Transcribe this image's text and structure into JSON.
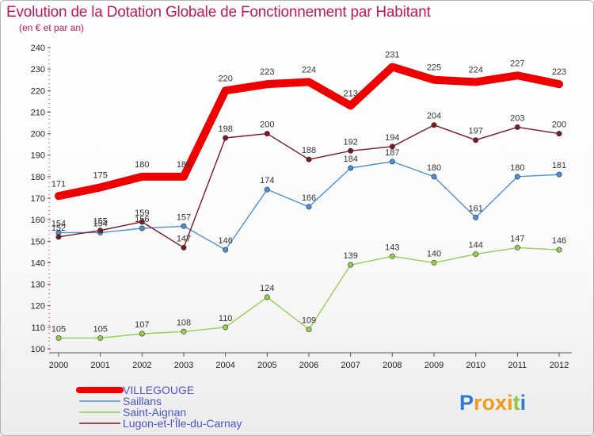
{
  "chart_data": {
    "type": "line",
    "title": "Evolution de la Dotation Globale de Fonctionnement par Habitant",
    "subtitle": "(en € et par an)",
    "xlabel": "",
    "ylabel": "",
    "x": [
      "2000",
      "2001",
      "2002",
      "2003",
      "2004",
      "2005",
      "2006",
      "2007",
      "2008",
      "2009",
      "2010",
      "2011",
      "2012"
    ],
    "ylim": [
      100,
      240
    ],
    "yticks": [
      100,
      110,
      120,
      130,
      140,
      150,
      160,
      170,
      180,
      190,
      200,
      210,
      220,
      230,
      240
    ],
    "grid": false,
    "legend_position": "bottom-left",
    "series": [
      {
        "name": "VILLEGOUGE",
        "color": "#ee0000",
        "values": [
          171,
          175,
          180,
          180,
          220,
          223,
          224,
          213,
          231,
          225,
          224,
          227,
          223
        ]
      },
      {
        "name": "Saillans",
        "color": "#4a90d9",
        "values": [
          154,
          154,
          156,
          157,
          146,
          174,
          166,
          184,
          187,
          180,
          161,
          180,
          181
        ]
      },
      {
        "name": "Saint-Aignan",
        "color": "#92d050",
        "values": [
          105,
          105,
          107,
          108,
          110,
          124,
          109,
          139,
          143,
          140,
          144,
          147,
          146
        ]
      },
      {
        "name": "Lugon-et-l'Île-du-Carnay",
        "color": "#7b1a24",
        "values": [
          152,
          155,
          159,
          147,
          198,
          200,
          188,
          192,
          194,
          204,
          197,
          203,
          200
        ]
      }
    ]
  },
  "brand": {
    "letters": [
      "P",
      "r",
      "o",
      "x",
      "i",
      "t",
      "i"
    ],
    "colors": [
      "#2b7bd6",
      "#f29a1a",
      "#f29a1a",
      "#f29a1a",
      "#f29a1a",
      "#8cc63f",
      "#2b7bd6"
    ]
  }
}
